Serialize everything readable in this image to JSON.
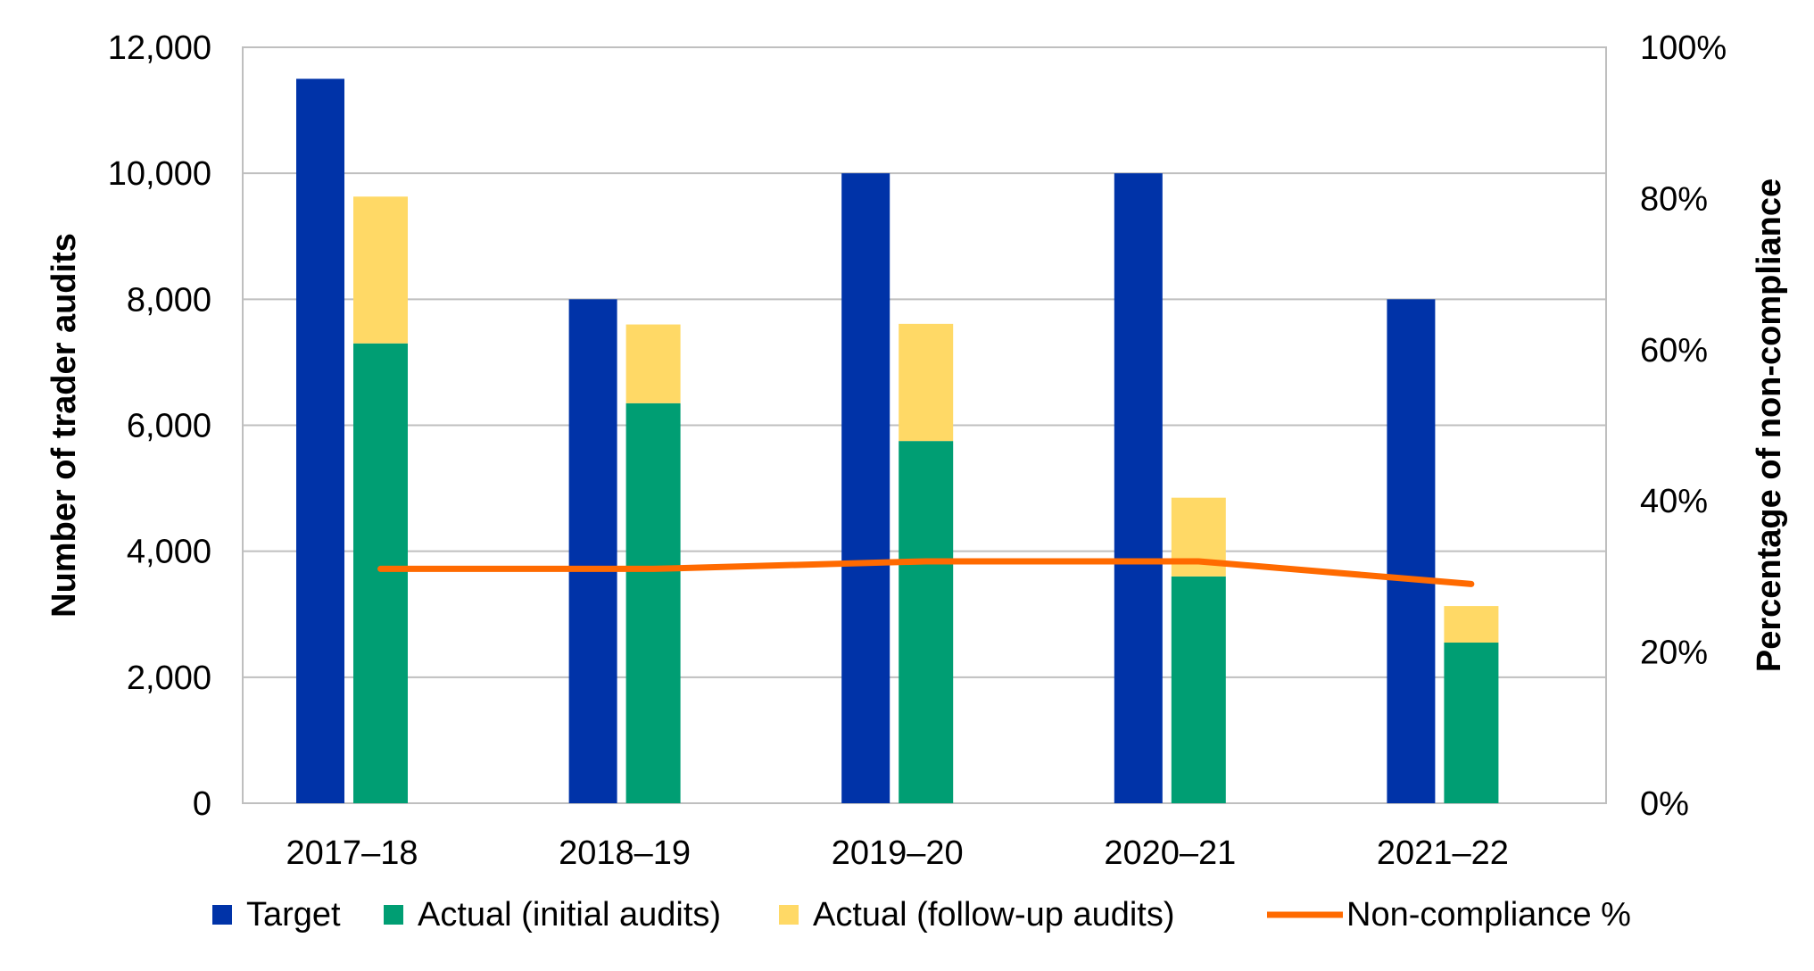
{
  "chart_data": {
    "type": "bar",
    "categories": [
      "2017–18",
      "2018–19",
      "2019–20",
      "2020–21",
      "2021–22"
    ],
    "series": [
      {
        "name": "Target",
        "kind": "bar",
        "color": "#0033A8",
        "values": [
          11500,
          8000,
          10000,
          10000,
          8000
        ]
      },
      {
        "name": "Actual (initial audits)",
        "kind": "stacked-bar",
        "color": "#009E73",
        "values": [
          7300,
          6350,
          5750,
          3600,
          2550
        ]
      },
      {
        "name": "Actual (follow-up audits)",
        "kind": "stacked-bar",
        "color": "#FFD966",
        "values": [
          2330,
          1250,
          1860,
          1250,
          580
        ]
      },
      {
        "name": "Non-compliance %",
        "kind": "line",
        "axis": "right",
        "color": "#FF6A00",
        "values": [
          31,
          31,
          32,
          32,
          29
        ]
      }
    ],
    "ylabel": "Number of trader audits",
    "y2label": "Percentage of non-compliance",
    "ylim": [
      0,
      12000
    ],
    "y2lim": [
      0,
      100
    ],
    "yticks": [
      "0",
      "2,000",
      "4,000",
      "6,000",
      "8,000",
      "10,000",
      "12,000"
    ],
    "y2ticks": [
      "0%",
      "20%",
      "40%",
      "60%",
      "80%",
      "100%"
    ],
    "grid": true,
    "legend_position": "bottom"
  }
}
